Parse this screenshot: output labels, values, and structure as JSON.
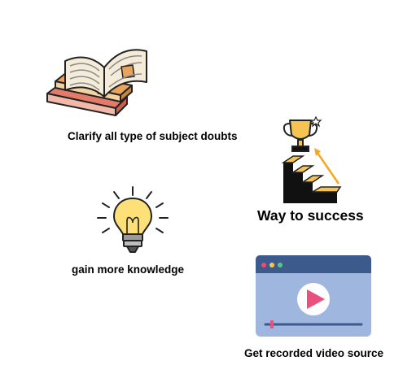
{
  "features": [
    {
      "icon": "books-icon",
      "label": "Clarify all type of subject doubts"
    },
    {
      "icon": "trophy-stairs-icon",
      "label": "Way to success"
    },
    {
      "icon": "lightbulb-icon",
      "label": "gain more knowledge"
    },
    {
      "icon": "video-player-icon",
      "label": "Get recorded video source"
    }
  ],
  "colors": {
    "text": "#000000",
    "book_red": "#e27b6a",
    "book_page": "#f4ecd9",
    "book_bookmark": "#e8a45a",
    "bulb_yellow": "#fde178",
    "trophy_gold": "#f6c453",
    "stairs_dark": "#111111",
    "video_window": "#9fb6de",
    "video_bar": "#3c5a8c",
    "play_button": "#e9507e",
    "dot_red": "#ef4b6e",
    "dot_yellow": "#f7c948",
    "dot_green": "#57c785"
  }
}
